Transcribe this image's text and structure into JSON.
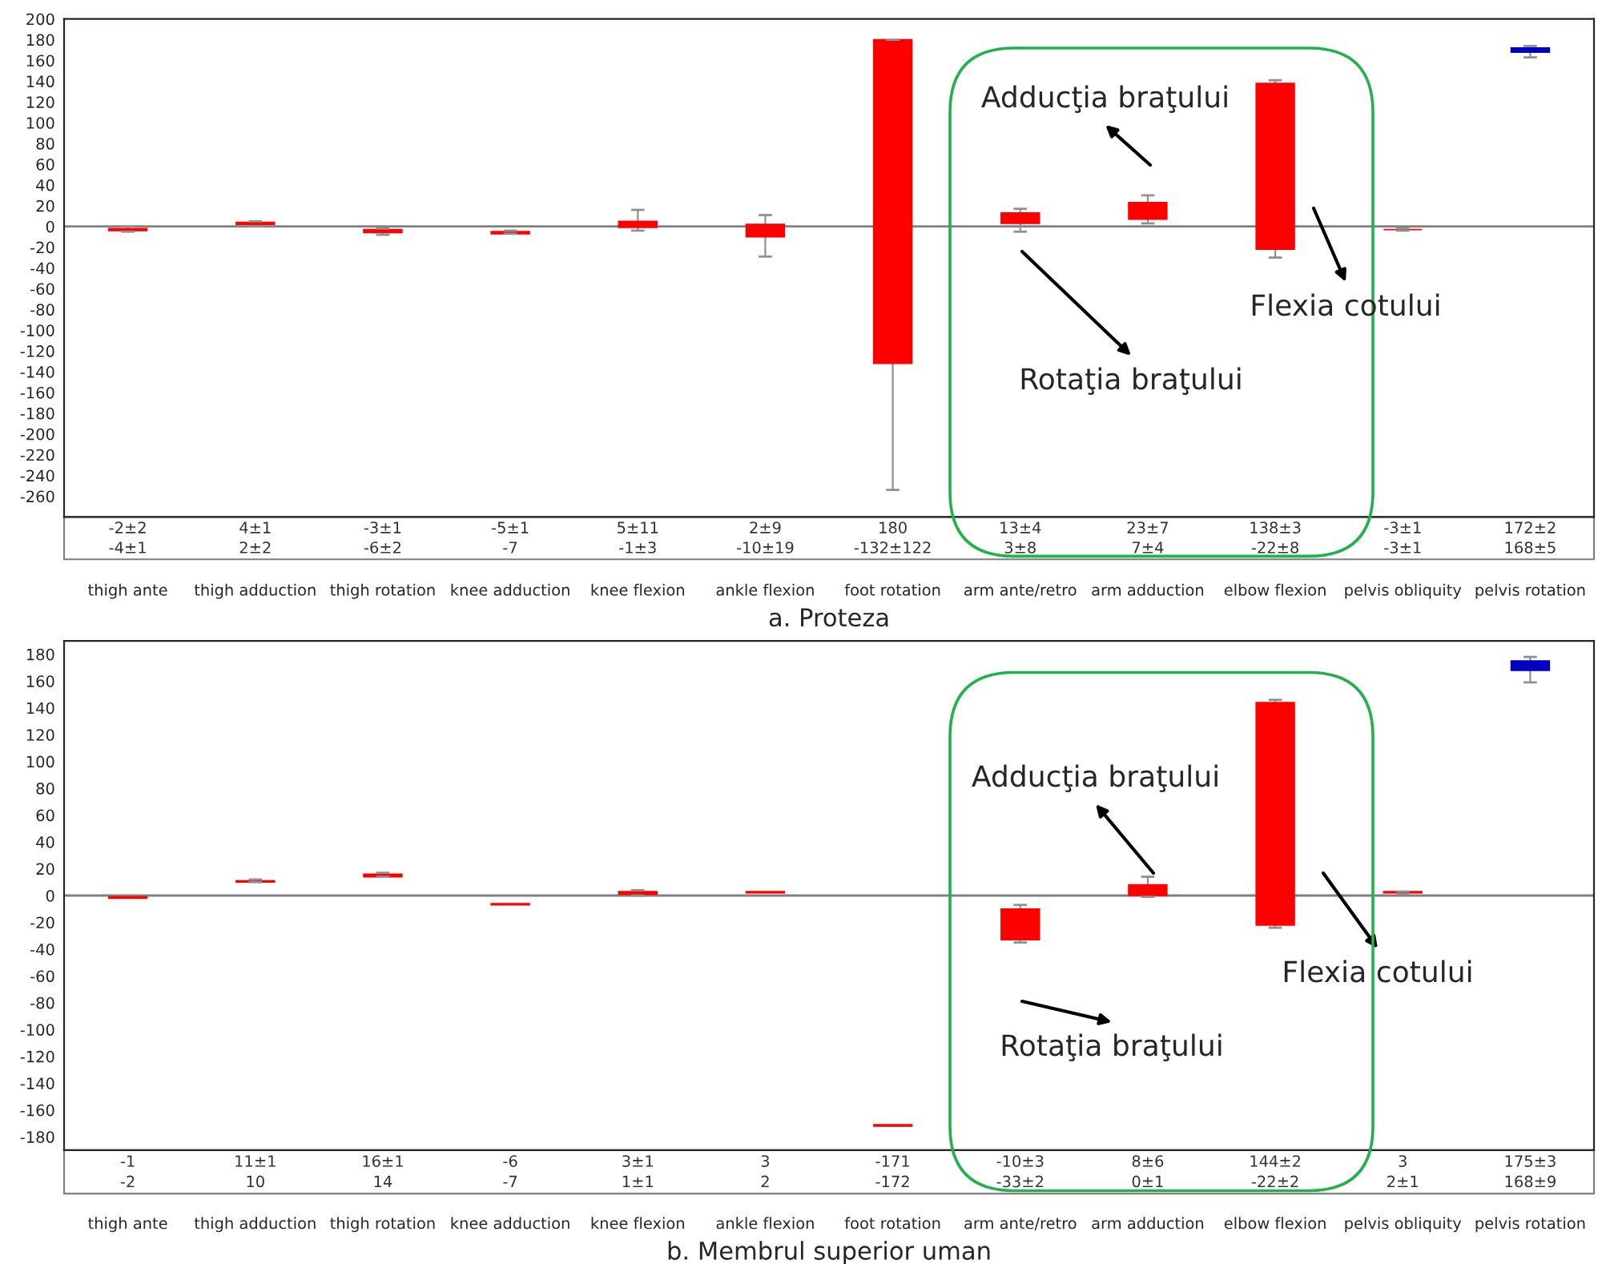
{
  "chart_data": [
    {
      "type": "bar",
      "xlabel": "a. Proteza",
      "categories": [
        "thigh ante",
        "thigh adduction",
        "thigh rotation",
        "knee adduction",
        "knee flexion",
        "ankle flexion",
        "foot rotation",
        "arm ante/retro",
        "arm adduction",
        "elbow flexion",
        "pelvis obliquity",
        "pelvis rotation"
      ],
      "base": [
        -4,
        2,
        -6,
        -7,
        -1,
        -10,
        -132,
        3,
        7,
        -22,
        -3,
        168
      ],
      "values": [
        2,
        2,
        3,
        2,
        6,
        12,
        312,
        10,
        16,
        160,
        0,
        4
      ],
      "errors": [
        [
          -5,
          0
        ],
        [
          0,
          5
        ],
        [
          -8,
          -2
        ],
        [
          -7,
          -4
        ],
        [
          -4,
          16
        ],
        [
          -29,
          11
        ],
        [
          -254,
          180
        ],
        [
          -5,
          17
        ],
        [
          3,
          30
        ],
        [
          -30,
          141
        ],
        [
          -4,
          -2
        ],
        [
          163,
          174
        ]
      ],
      "colors": [
        "#ff0000",
        "#ff0000",
        "#ff0000",
        "#ff0000",
        "#ff0000",
        "#ff0000",
        "#ff0000",
        "#ff0000",
        "#ff0000",
        "#ff0000",
        "#ff0000",
        "#0000c0"
      ],
      "ylim": [
        -280,
        200
      ],
      "yticks": [
        -260,
        -240,
        -220,
        -200,
        -180,
        -160,
        -140,
        -120,
        -100,
        -80,
        -60,
        -40,
        -20,
        0,
        20,
        40,
        60,
        80,
        100,
        120,
        140,
        160,
        180,
        200
      ],
      "ref_lines": [
        {
          "axis": "y",
          "value": 0,
          "color": "#808080"
        }
      ],
      "annotations": [
        "Adducţia braţului",
        "Rotaţia braţului",
        "Flexia cotului",
        "-2±2",
        "4±1",
        "-3±1",
        "-5±1",
        "5±11",
        "2±9",
        "180",
        "13±4",
        "23±7",
        "138±3",
        "-3±1",
        "172±2",
        "-4±1",
        "2±2",
        "-6±2",
        "-7",
        "-1±3",
        "-10±19",
        "-132±122",
        "3±8",
        "7±4",
        "-22±8",
        "-3±1",
        "168±5"
      ]
    },
    {
      "type": "bar",
      "xlabel": "b. Membrul superior uman",
      "categories": [
        "thigh ante",
        "thigh adduction",
        "thigh rotation",
        "knee adduction",
        "knee flexion",
        "ankle flexion",
        "foot rotation",
        "arm ante/retro",
        "arm adduction",
        "elbow flexion",
        "pelvis obliquity",
        "pelvis rotation"
      ],
      "base": [
        -2,
        10,
        14,
        -7,
        1,
        2,
        -172,
        -33,
        0,
        -22,
        2,
        168
      ],
      "values": [
        1,
        1,
        2,
        1,
        2,
        1,
        1,
        23,
        8,
        166,
        1,
        7
      ],
      "errors": [
        null,
        [
          10,
          12
        ],
        [
          14,
          17
        ],
        null,
        [
          0,
          4
        ],
        null,
        null,
        [
          -35,
          -7
        ],
        [
          -1,
          14
        ],
        [
          -24,
          146
        ],
        [
          1,
          3
        ],
        [
          159,
          178
        ]
      ],
      "colors": [
        "#ff0000",
        "#ff0000",
        "#ff0000",
        "#ff0000",
        "#ff0000",
        "#ff0000",
        "#ff0000",
        "#ff0000",
        "#ff0000",
        "#ff0000",
        "#ff0000",
        "#0000c0"
      ],
      "ylim": [
        -190,
        190
      ],
      "yticks": [
        -180,
        -160,
        -140,
        -120,
        -100,
        -80,
        -60,
        -40,
        -20,
        0,
        20,
        40,
        60,
        80,
        100,
        120,
        140,
        160,
        180
      ],
      "ref_lines": [
        {
          "axis": "y",
          "value": 0,
          "color": "#808080"
        }
      ],
      "annotations": [
        "Adducţia braţului",
        "Rotaţia braţului",
        "Flexia cotului",
        "-1",
        "11±1",
        "16±1",
        "-6",
        "3±1",
        "3",
        "-171",
        "-10±3",
        "8±6",
        "144±2",
        "3",
        "175±3",
        "-2",
        "10",
        "14",
        "-7",
        "1±1",
        "2",
        "-172",
        "-33±2",
        "0±1",
        "-22±2",
        "2±1",
        "168±9"
      ]
    }
  ]
}
